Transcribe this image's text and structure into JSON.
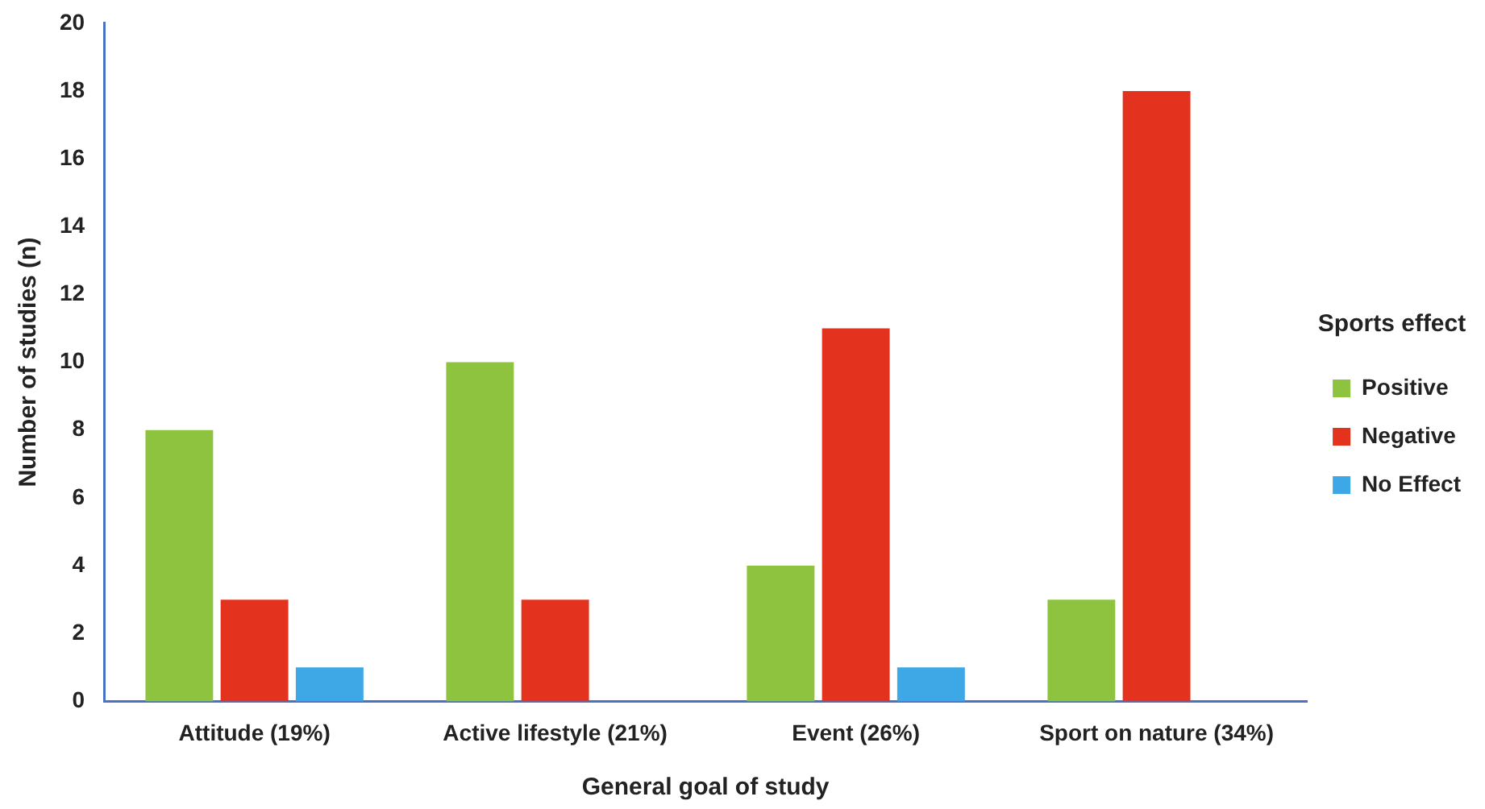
{
  "chart_data": {
    "type": "bar",
    "xlabel": "General goal of study",
    "ylabel": "Number of studies (n)",
    "legend_title": "Sports effect",
    "legend": "right",
    "grid": false,
    "categories": [
      "Attitude (19%)",
      "Active lifestyle (21%)",
      "Event (26%)",
      "Sport on nature (34%)"
    ],
    "series": [
      {
        "name": "Positive",
        "color": "#8dc33f",
        "values": [
          8,
          10,
          4,
          3
        ]
      },
      {
        "name": "Negative",
        "color": "#e3331e",
        "values": [
          3,
          3,
          11,
          18
        ]
      },
      {
        "name": "No Effect",
        "color": "#3ea8e6",
        "values": [
          1,
          0,
          1,
          0
        ]
      }
    ],
    "ylim": [
      0,
      20
    ],
    "yticks": [
      0,
      2,
      4,
      6,
      8,
      10,
      12,
      14,
      16,
      18,
      20
    ]
  }
}
